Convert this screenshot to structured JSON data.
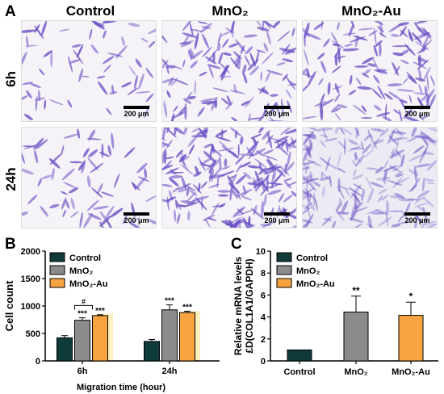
{
  "panel_labels": {
    "a": "A",
    "b": "B",
    "c": "C"
  },
  "micrographs": {
    "columns": [
      "Control",
      "MnO₂",
      "MnO₂-Au"
    ],
    "rows": [
      "6h",
      "24h"
    ],
    "scale_label": "200 μm"
  },
  "colors": {
    "control": "#0f3b3b",
    "mno2": "#8c8c8c",
    "mno2au": "#f7a440",
    "mno2au_light": "#fdf0bd",
    "stain": "#6a4fc4"
  },
  "chart_data": [
    {
      "type": "bar",
      "categories": [
        "6h",
        "24h"
      ],
      "series": [
        {
          "name": "Control",
          "values": [
            420,
            355
          ],
          "errors": [
            40,
            35
          ]
        },
        {
          "name": "MnO₂",
          "values": [
            740,
            930
          ],
          "errors": [
            45,
            90
          ]
        },
        {
          "name": "MnO₂-Au",
          "values": [
            825,
            880
          ],
          "errors": [
            15,
            25
          ]
        }
      ],
      "significance": [
        [
          "",
          "***",
          "***"
        ],
        [
          "",
          "***",
          "***"
        ]
      ],
      "bracket_label": "#",
      "xlabel": "Migration time (hour)",
      "ylabel": "Cell count",
      "ylim": [
        0,
        2000
      ],
      "yticks": [
        0,
        500,
        1000,
        1500,
        2000
      ],
      "legend": "top-left"
    },
    {
      "type": "bar",
      "categories": [
        "Control",
        "MnO₂",
        "MnO₂-Au"
      ],
      "values": [
        1.0,
        4.45,
        4.15
      ],
      "errors": [
        0.0,
        1.45,
        1.2
      ],
      "significance": [
        "",
        "**",
        "*"
      ],
      "ylabel_line1": "Relative mRNA levels",
      "ylabel_line2": "£D(COL1A1/GAPDH)",
      "ylim": [
        0,
        10
      ],
      "yticks": [
        0,
        2,
        4,
        6,
        8,
        10
      ],
      "legend_entries": [
        "Control",
        "MnO₂",
        "MnO₂-Au"
      ],
      "legend": "top-left"
    }
  ]
}
